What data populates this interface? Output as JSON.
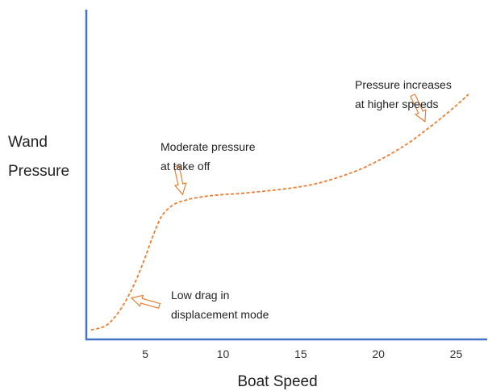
{
  "chart_data": {
    "type": "line",
    "title": "",
    "xlabel": "Boat Speed",
    "ylabel_lines": [
      "Wand",
      "Pressure"
    ],
    "xlim": [
      1.2,
      27
    ],
    "ylim": [
      0,
      100
    ],
    "x_ticks": [
      5,
      10,
      15,
      20,
      25
    ],
    "y_ticks_labeled": false,
    "grid": false,
    "series": [
      {
        "style": "dashed",
        "color": "#ED7D31",
        "x": [
          1.5,
          2.0,
          2.5,
          3.0,
          3.5,
          4.0,
          4.5,
          5.0,
          5.5,
          6.0,
          6.5,
          7.0,
          7.5,
          8.0,
          9.0,
          10.0,
          11.0,
          12.0,
          13.0,
          14.0,
          15.0,
          16.0,
          17.0,
          18.0,
          19.0,
          20.0,
          21.0,
          22.0,
          23.0,
          24.0,
          25.0,
          25.8
        ],
        "y": [
          0.5,
          1.0,
          2.0,
          4.5,
          8.0,
          12.5,
          18.0,
          24.5,
          31.5,
          37.5,
          40.5,
          42.2,
          43.0,
          43.7,
          44.5,
          45.0,
          45.3,
          45.8,
          46.3,
          46.9,
          47.6,
          48.6,
          50.0,
          51.7,
          53.7,
          56.2,
          59.0,
          62.2,
          66.0,
          70.0,
          74.3,
          78.0
        ]
      }
    ],
    "annotations": [
      {
        "lines": [
          "Pressure increases",
          "at higher speeds"
        ],
        "arrow_tip": [
          23,
          69
        ]
      },
      {
        "lines": [
          "Moderate pressure",
          "at take off"
        ],
        "arrow_tip": [
          7.4,
          45
        ]
      },
      {
        "lines": [
          "Low drag in",
          "displacement mode"
        ],
        "arrow_tip": [
          4.1,
          11
        ]
      }
    ],
    "colors": {
      "axis": "#4472C4",
      "line": "#ED7D31",
      "arrow": "#ED7D31"
    }
  }
}
